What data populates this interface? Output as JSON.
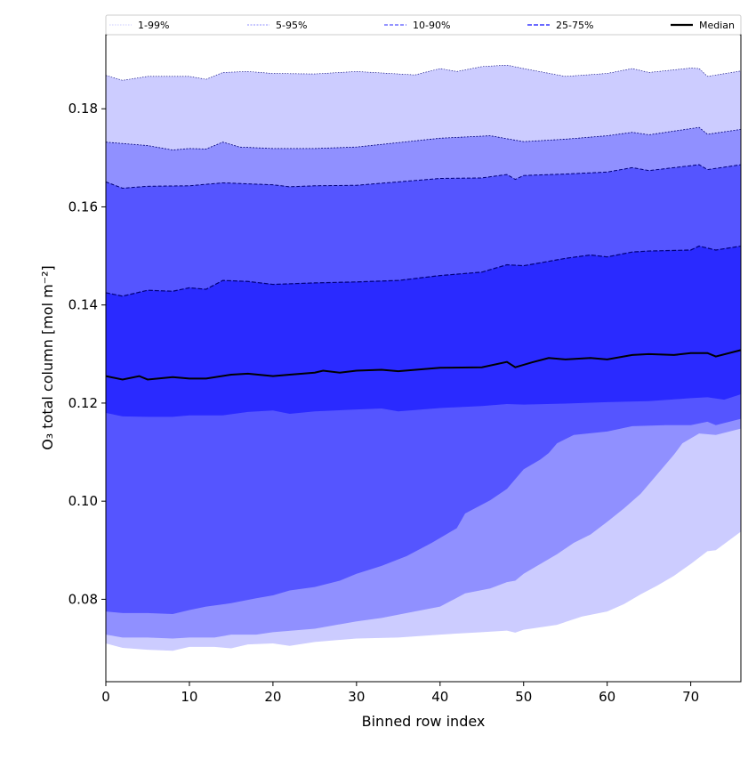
{
  "chart_data": {
    "type": "area",
    "title": "",
    "xlabel": "Binned row index",
    "ylabel": "O₃ total column [mol m⁻²]",
    "xlim": [
      0,
      76
    ],
    "ylim": [
      0.0632,
      0.1951
    ],
    "xticks": [
      0,
      10,
      20,
      30,
      40,
      50,
      60,
      70
    ],
    "yticks": [
      0.08,
      0.1,
      0.12,
      0.14,
      0.16,
      0.18
    ],
    "ytick_labels": [
      "0.08",
      "0.10",
      "0.12",
      "0.14",
      "0.16",
      "0.18"
    ],
    "grid": false,
    "legend_placement": "top, above plot",
    "legend": [
      "1-99%",
      "5-95%",
      "10-90%",
      "25-75%",
      "Median"
    ],
    "bands": [
      {
        "name": "1-99%",
        "color": "#ccccff",
        "lower": "p1",
        "upper": "p99"
      },
      {
        "name": "5-95%",
        "color": "#9090ff",
        "lower": "p5",
        "upper": "p95"
      },
      {
        "name": "10-90%",
        "color": "#5555ff",
        "lower": "p10",
        "upper": "p90"
      },
      {
        "name": "25-75%",
        "color": "#2a2aff",
        "lower": "p25",
        "upper": "p75"
      }
    ],
    "series": {
      "p99": {
        "x": [
          0,
          2,
          5,
          10,
          12,
          14,
          17,
          20,
          25,
          30,
          37,
          40,
          42,
          45,
          48,
          50,
          55,
          60,
          63,
          65,
          70,
          71,
          72,
          76
        ],
        "y": [
          0.1868,
          0.1858,
          0.1866,
          0.1866,
          0.186,
          0.1874,
          0.1876,
          0.1872,
          0.1871,
          0.1876,
          0.1869,
          0.1882,
          0.1876,
          0.1886,
          0.1889,
          0.1882,
          0.1866,
          0.1872,
          0.1882,
          0.1874,
          0.1883,
          0.1882,
          0.1866,
          0.1877
        ]
      },
      "p95": {
        "x": [
          0,
          5,
          8,
          10,
          12,
          14,
          16,
          20,
          25,
          30,
          35,
          40,
          46,
          50,
          55,
          60,
          63,
          65,
          71,
          72,
          76
        ],
        "y": [
          0.1732,
          0.1725,
          0.1716,
          0.1719,
          0.1718,
          0.1732,
          0.1722,
          0.1719,
          0.1719,
          0.1722,
          0.1731,
          0.174,
          0.1745,
          0.1733,
          0.1738,
          0.1745,
          0.1752,
          0.1747,
          0.1762,
          0.1748,
          0.1758
        ]
      },
      "p90": {
        "x": [
          0,
          2,
          5,
          10,
          14,
          20,
          22,
          25,
          30,
          35,
          40,
          45,
          48,
          49,
          50,
          55,
          60,
          63,
          65,
          71,
          72,
          76
        ],
        "y": [
          0.1651,
          0.1638,
          0.1642,
          0.1643,
          0.1649,
          0.1645,
          0.1641,
          0.1643,
          0.1644,
          0.1651,
          0.1658,
          0.1659,
          0.1666,
          0.1656,
          0.1664,
          0.1667,
          0.1671,
          0.168,
          0.1674,
          0.1686,
          0.1676,
          0.1686
        ]
      },
      "p75": {
        "x": [
          0,
          2,
          5,
          8,
          10,
          12,
          14,
          17,
          20,
          25,
          30,
          35,
          40,
          45,
          48,
          50,
          55,
          58,
          60,
          63,
          65,
          70,
          71,
          73,
          76
        ],
        "y": [
          0.1425,
          0.1418,
          0.143,
          0.1428,
          0.1435,
          0.1432,
          0.145,
          0.1448,
          0.1442,
          0.1445,
          0.1447,
          0.145,
          0.146,
          0.1467,
          0.1482,
          0.148,
          0.1495,
          0.1502,
          0.1498,
          0.1508,
          0.151,
          0.1512,
          0.152,
          0.1512,
          0.152
        ]
      },
      "median": {
        "x": [
          0,
          2,
          4,
          5,
          8,
          10,
          12,
          15,
          17,
          20,
          22,
          25,
          26,
          28,
          30,
          33,
          35,
          40,
          45,
          48,
          49,
          51,
          53,
          55,
          58,
          60,
          63,
          65,
          68,
          70,
          72,
          73,
          76
        ],
        "y": [
          0.1255,
          0.1248,
          0.1255,
          0.1248,
          0.1253,
          0.125,
          0.125,
          0.1258,
          0.126,
          0.1255,
          0.1258,
          0.1262,
          0.1266,
          0.1262,
          0.1266,
          0.1268,
          0.1265,
          0.1272,
          0.1273,
          0.1284,
          0.1273,
          0.1283,
          0.1292,
          0.1289,
          0.1292,
          0.1289,
          0.1298,
          0.13,
          0.1298,
          0.1302,
          0.1302,
          0.1295,
          0.1308
        ]
      },
      "p25": {
        "x": [
          0,
          2,
          5,
          8,
          10,
          14,
          17,
          20,
          22,
          25,
          30,
          33,
          35,
          40,
          45,
          48,
          50,
          55,
          60,
          65,
          70,
          72,
          74,
          76
        ],
        "y": [
          0.118,
          0.1173,
          0.1172,
          0.1172,
          0.1175,
          0.1175,
          0.1182,
          0.1185,
          0.1178,
          0.1183,
          0.1187,
          0.1189,
          0.1183,
          0.119,
          0.1194,
          0.1198,
          0.1197,
          0.1199,
          0.1202,
          0.1204,
          0.121,
          0.1212,
          0.1207,
          0.1218
        ]
      },
      "p10": {
        "x": [
          0,
          2,
          5,
          8,
          10,
          12,
          15,
          18,
          20,
          22,
          25,
          28,
          30,
          33,
          36,
          39,
          41,
          42,
          43,
          46,
          48,
          50,
          52,
          53,
          54,
          56,
          60,
          63,
          67,
          70,
          72,
          73,
          76
        ],
        "y": [
          0.0775,
          0.0772,
          0.0772,
          0.077,
          0.0778,
          0.0785,
          0.0792,
          0.0802,
          0.0808,
          0.0818,
          0.0825,
          0.0838,
          0.0852,
          0.0868,
          0.0888,
          0.0915,
          0.0935,
          0.0945,
          0.0975,
          0.1002,
          0.1025,
          0.1065,
          0.1085,
          0.1098,
          0.1118,
          0.1135,
          0.1142,
          0.1153,
          0.1155,
          0.1155,
          0.1162,
          0.1155,
          0.1168
        ]
      },
      "p5": {
        "x": [
          0,
          2,
          5,
          8,
          10,
          13,
          15,
          18,
          20,
          25,
          30,
          33,
          36,
          40,
          43,
          46,
          48,
          49,
          50,
          52,
          54,
          56,
          58,
          60,
          62,
          64,
          66,
          68,
          69,
          71,
          73,
          76
        ],
        "y": [
          0.0728,
          0.0722,
          0.0722,
          0.072,
          0.0722,
          0.0722,
          0.0728,
          0.0728,
          0.0733,
          0.074,
          0.0755,
          0.0762,
          0.0772,
          0.0785,
          0.0812,
          0.0822,
          0.0835,
          0.0838,
          0.0852,
          0.0872,
          0.0892,
          0.0915,
          0.0932,
          0.0958,
          0.0985,
          0.1015,
          0.1055,
          0.1095,
          0.1118,
          0.1138,
          0.1135,
          0.1148
        ]
      },
      "p1": {
        "x": [
          0,
          2,
          5,
          8,
          10,
          13,
          15,
          17,
          20,
          22,
          25,
          30,
          35,
          40,
          45,
          48,
          49,
          50,
          54,
          57,
          60,
          62,
          64,
          66,
          68,
          70,
          72,
          73,
          76
        ],
        "y": [
          0.071,
          0.0701,
          0.0697,
          0.0695,
          0.0703,
          0.0703,
          0.07,
          0.0708,
          0.071,
          0.0705,
          0.0713,
          0.072,
          0.0722,
          0.0728,
          0.0733,
          0.0736,
          0.0732,
          0.0738,
          0.0748,
          0.0765,
          0.0775,
          0.079,
          0.081,
          0.0828,
          0.0848,
          0.0872,
          0.0898,
          0.09,
          0.0938
        ]
      }
    },
    "upper_edge_color": "#00007a",
    "median_color": "#000000"
  }
}
